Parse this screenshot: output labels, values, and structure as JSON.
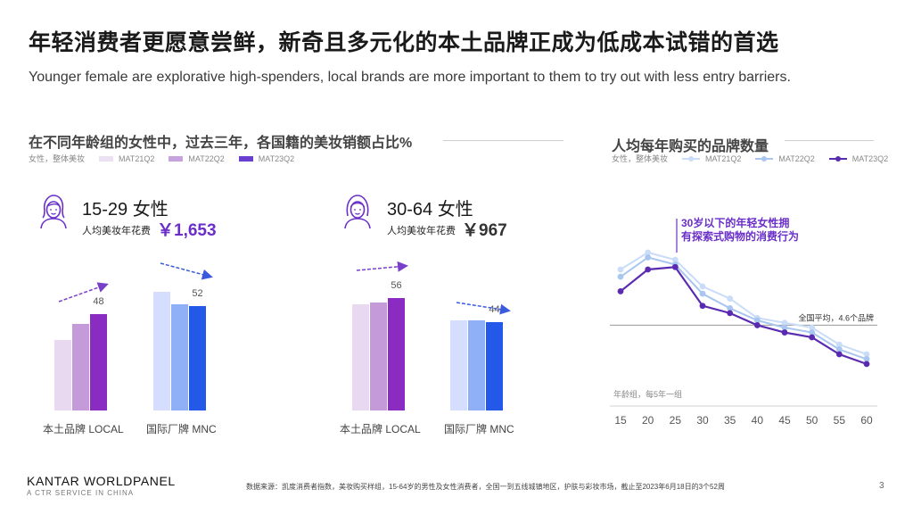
{
  "header": {
    "title": "年轻消费者更愿意尝鲜，新奇且多元化的本土品牌正成为低成本试错的首选",
    "subtitle": "Younger female are explorative high-spenders, local brands are more important to them to try out with less entry barriers."
  },
  "left_section": {
    "title": "在不同年龄组的女性中，过去三年，各国籍的美妆销额占比%",
    "legend_prefix": "女性，整体美妆",
    "legend": [
      "MAT21Q2",
      "MAT22Q2",
      "MAT23Q2"
    ],
    "colors": {
      "local": [
        "#e8d8f0",
        "#c59ad9",
        "#8a2bc2"
      ],
      "mnc": [
        "#d5deff",
        "#8fb0f7",
        "#2358e8"
      ],
      "spend_value": "#6a2fc9"
    }
  },
  "groups": [
    {
      "age": "15-29 女性",
      "spend_label": "人均美妆年花费",
      "spend_value": "￥1,653",
      "icon": "young-woman-icon"
    },
    {
      "age": "30-64 女性",
      "spend_label": "人均美妆年花费",
      "spend_value": "￥967",
      "icon": "woman-icon"
    }
  ],
  "right_section": {
    "title": "人均每年购买的品牌数量",
    "legend_prefix": "女性，整体美妆",
    "legend": [
      "MAT21Q2",
      "MAT22Q2",
      "MAT23Q2"
    ],
    "colors": [
      "#c9dcf8",
      "#a8c6f0",
      "#5a2bb0"
    ]
  },
  "chart_data": [
    {
      "type": "bar",
      "title": "15-29 女性",
      "categories": [
        "本土品牌 LOCAL",
        "国际厂牌 MNC"
      ],
      "series": [
        {
          "name": "MAT21Q2",
          "values": [
            35,
            59
          ]
        },
        {
          "name": "MAT22Q2",
          "values": [
            43,
            53
          ]
        },
        {
          "name": "MAT23Q2",
          "values": [
            48,
            52
          ]
        }
      ],
      "data_labels": [
        "48",
        "52"
      ],
      "ylim": [
        0,
        70
      ]
    },
    {
      "type": "bar",
      "title": "30-64 女性",
      "categories": [
        "本土品牌 LOCAL",
        "国际厂牌 MNC"
      ],
      "series": [
        {
          "name": "MAT21Q2",
          "values": [
            53,
            45
          ]
        },
        {
          "name": "MAT22Q2",
          "values": [
            54,
            45
          ]
        },
        {
          "name": "MAT23Q2",
          "values": [
            56,
            44
          ]
        }
      ],
      "data_labels": [
        "56",
        "44"
      ],
      "ylim": [
        0,
        70
      ]
    },
    {
      "type": "line",
      "title": "人均每年购买的品牌数量",
      "x": [
        15,
        20,
        25,
        30,
        35,
        40,
        45,
        50,
        55,
        60
      ],
      "xticklabels": [
        "15",
        "20",
        "25",
        "30",
        "35",
        "40",
        "45",
        "50",
        "55",
        "60"
      ],
      "xlabel": "年龄组，每5年一组",
      "ylim": [
        2,
        9
      ],
      "series": [
        {
          "name": "MAT21Q2",
          "values": [
            6.9,
            7.6,
            7.3,
            6.2,
            5.7,
            4.9,
            4.7,
            4.5,
            3.8,
            3.4
          ]
        },
        {
          "name": "MAT22Q2",
          "values": [
            6.6,
            7.4,
            7.1,
            5.9,
            5.3,
            4.8,
            4.5,
            4.3,
            3.6,
            3.2
          ]
        },
        {
          "name": "MAT23Q2",
          "values": [
            6.0,
            6.9,
            7.0,
            5.4,
            5.1,
            4.6,
            4.3,
            4.1,
            3.4,
            3.0
          ]
        }
      ],
      "reference_line": {
        "value": 4.6,
        "label": "全国平均，4.6个品牌"
      },
      "annotation": "30岁以下的年轻女性拥有探索式购物的消费行为"
    }
  ],
  "footer": {
    "brand": "KANTAR WORLDPANEL",
    "tagline": "A CTR SERVICE IN CHINA",
    "source": "数据来源：凯度消费者指数，美妆购买样组，15-64岁的男性及女性消费者，全国一到五线城镇地区，护肤与彩妆市场，截止至2023年6月18日的3个52周",
    "page": "3"
  }
}
